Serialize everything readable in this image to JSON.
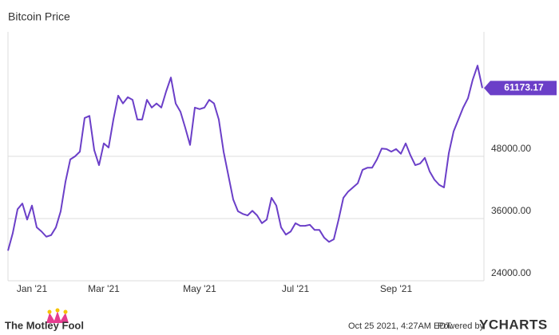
{
  "chart_data": {
    "type": "line",
    "title": "Bitcoin Price",
    "color": "#6b3fc8",
    "categories": [
      null,
      null,
      null,
      null,
      null,
      "Jan '21",
      null,
      null,
      null,
      null,
      null,
      null,
      null,
      null,
      null,
      null,
      null,
      null,
      null,
      null,
      "Mar '21",
      null,
      null,
      null,
      null,
      null,
      null,
      null,
      null,
      null,
      null,
      null,
      null,
      null,
      null,
      null,
      null,
      null,
      null,
      null,
      "May '21",
      null,
      null,
      null,
      null,
      null,
      null,
      null,
      null,
      null,
      null,
      null,
      null,
      null,
      null,
      null,
      null,
      null,
      null,
      null,
      "Jul '21",
      null,
      null,
      null,
      null,
      null,
      null,
      null,
      null,
      null,
      null,
      null,
      null,
      null,
      null,
      null,
      null,
      null,
      null,
      null,
      null,
      "Sep '21",
      null,
      null,
      null,
      null,
      null,
      null,
      null,
      null,
      null,
      null,
      null,
      null,
      null,
      null,
      null,
      null,
      null,
      null
    ],
    "values": [
      29800,
      33200,
      37800,
      38900,
      35800,
      38500,
      34300,
      33500,
      32500,
      32800,
      34300,
      37400,
      43100,
      47400,
      48000,
      48900,
      55400,
      55800,
      49200,
      46300,
      50500,
      49700,
      55100,
      59700,
      58200,
      59400,
      58900,
      55100,
      55100,
      58900,
      57400,
      58200,
      57400,
      60500,
      63200,
      58200,
      56600,
      53500,
      50200,
      57400,
      57100,
      57400,
      58900,
      58200,
      55100,
      48900,
      44300,
      39700,
      37400,
      36900,
      36600,
      37500,
      36600,
      35100,
      35800,
      40000,
      38500,
      34300,
      32900,
      33500,
      35100,
      34600,
      34600,
      34800,
      33800,
      33800,
      32300,
      31500,
      32000,
      35800,
      40000,
      41200,
      42000,
      42800,
      45400,
      45800,
      45800,
      47400,
      49500,
      49400,
      48900,
      49400,
      48500,
      50500,
      48200,
      46300,
      46600,
      47700,
      45100,
      43500,
      42500,
      42000,
      48600,
      52800,
      55100,
      57400,
      59200,
      62800,
      65500,
      61173.17
    ],
    "ylim": [
      24000,
      72000
    ],
    "yticks": [
      {
        "value": 24000,
        "label": "24000.00"
      },
      {
        "value": 36000,
        "label": "36000.00"
      },
      {
        "value": 48000,
        "label": "48000.00"
      }
    ],
    "grid": true
  },
  "footer": {
    "brand": "The Motley Fool",
    "timestamp": "Oct 25 2021, 4:27AM EDT.",
    "powered_by": "Powered by",
    "provider": "YCHARTS"
  }
}
